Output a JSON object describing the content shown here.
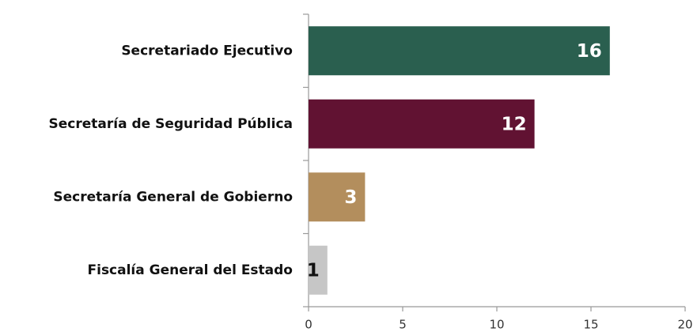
{
  "chart_data": {
    "type": "bar",
    "orientation": "horizontal",
    "categories": [
      "Secretariado Ejecutivo",
      "Secretaría de Seguridad Pública",
      "Secretaría General de Gobierno",
      "Fiscalía General del Estado"
    ],
    "values": [
      16,
      12,
      3,
      1
    ],
    "colors": [
      "#2a5f4f",
      "#611232",
      "#b38e5d",
      "#c6c6c6"
    ],
    "label_colors": [
      "#ffffff",
      "#ffffff",
      "#ffffff",
      "#111111"
    ],
    "xlim": [
      0,
      20
    ],
    "xticks": [
      0,
      5,
      10,
      15,
      20
    ],
    "grid": false
  }
}
